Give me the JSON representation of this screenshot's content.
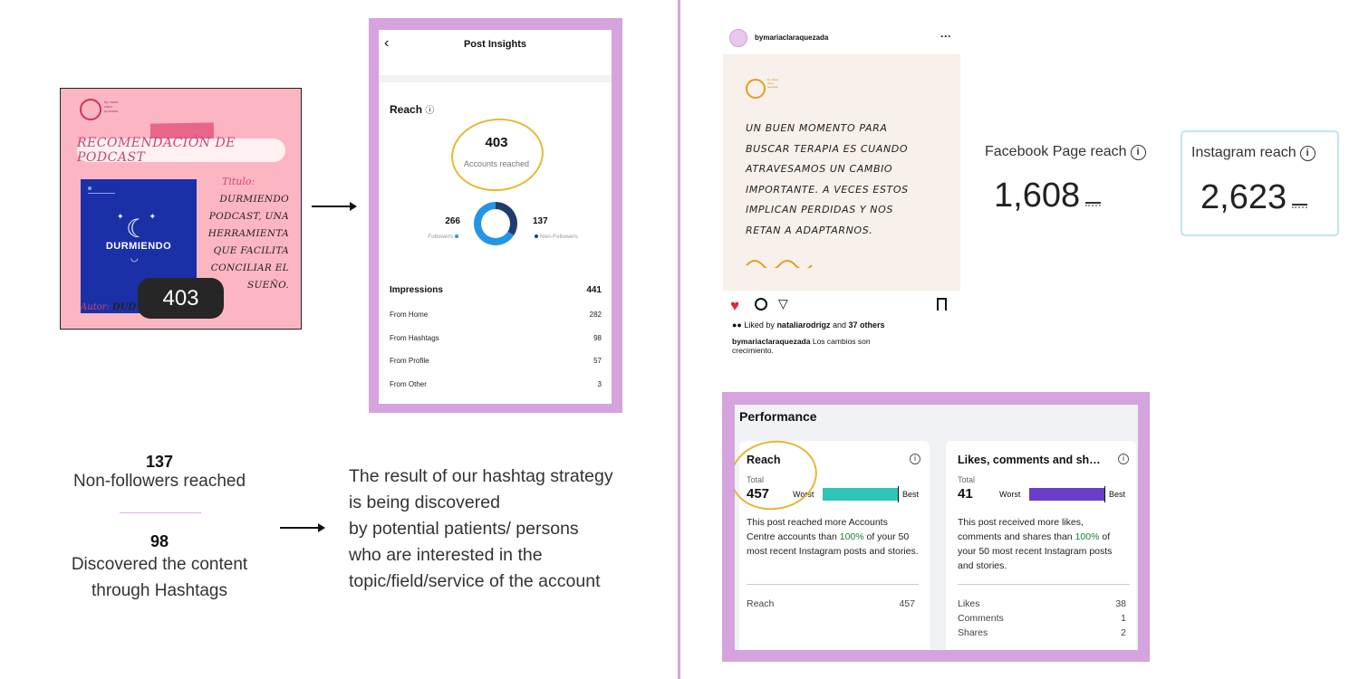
{
  "podcast_card": {
    "logo_text": "by maria clara quezada",
    "banner": "RECOMENDACIÓN DE PODCAST",
    "cover_title": "DURMIENDO",
    "title_label": "Titulo:",
    "description": "DURMIENDO PODCAST, UNA HERRAMIENTA QUE FACILITA CONCILIAR EL SUEÑO.",
    "author_label": "Autor:",
    "author_value": "DUD",
    "reach_bubble": "403"
  },
  "post_insights": {
    "title": "Post Insights",
    "reach_label": "Reach",
    "accounts_reached_value": "403",
    "accounts_reached_label": "Accounts reached",
    "followers_value": "266",
    "followers_label": "Followers",
    "non_followers_value": "137",
    "non_followers_label": "Non-Followers",
    "followers_share": 0.66,
    "impressions_label": "Impressions",
    "impressions_value": "441",
    "rows": [
      {
        "label": "From Home",
        "value": "282"
      },
      {
        "label": "From Hashtags",
        "value": "98"
      },
      {
        "label": "From Profile",
        "value": "57"
      },
      {
        "label": "From Other",
        "value": "3"
      }
    ]
  },
  "summary": {
    "stat1_value": "137",
    "stat1_label": "Non-followers reached",
    "stat2_value": "98",
    "stat2_label": "Discovered the content through Hashtags",
    "strategy_text": "The result of our hashtag strategy\nis being discovered\n by potential patients/ persons\nwho are interested in the\ntopic/field/service of the account"
  },
  "instagram_post": {
    "username": "bymariaclaraquezada",
    "more_icon": "···",
    "logo_text": "by maria clara quezada",
    "quote_lines": [
      "UN BUEN MOMENTO PARA",
      "BUSCAR TERAPIA ES CUANDO",
      "ATRAVESAMOS UN CAMBIO",
      "IMPORTANTE. A VECES ESTOS",
      "IMPLICAN PERDIDAS Y NOS",
      "RETAN A ADAPTARNOS."
    ],
    "liked_prefix": "Liked by",
    "liked_user": "nataliarodrigz",
    "liked_suffix": "and",
    "liked_others": "37 others",
    "caption_user": "bymariaclaraquezada",
    "caption_text": "Los cambios son crecimiento."
  },
  "reach_cards": {
    "facebook_label": "Facebook Page reach",
    "facebook_value": "1,608",
    "instagram_label": "Instagram reach",
    "instagram_value": "2,623"
  },
  "performance": {
    "title": "Performance",
    "reach_card": {
      "title": "Reach",
      "total_label": "Total",
      "total_value": "457",
      "worst_label": "Worst",
      "best_label": "Best",
      "bar_fraction": 1.0,
      "bar_color": "#2ec4b6",
      "desc_before": "This post reached more Accounts Centre accounts than ",
      "desc_pct": "100%",
      "desc_after": " of your 50 most recent Instagram posts and stories.",
      "rows": [
        {
          "label": "Reach",
          "value": "457"
        }
      ]
    },
    "likes_card": {
      "title": "Likes, comments and sh…",
      "total_label": "Total",
      "total_value": "41",
      "worst_label": "Worst",
      "best_label": "Best",
      "bar_fraction": 1.0,
      "bar_color": "#6b3ec9",
      "desc_before": "This post received more likes, comments and shares than ",
      "desc_pct": "100%",
      "desc_after": " of your 50 most recent Instagram posts and stories.",
      "rows": [
        {
          "label": "Likes",
          "value": "38"
        },
        {
          "label": "Comments",
          "value": "1"
        },
        {
          "label": "Shares",
          "value": "2"
        }
      ]
    }
  },
  "colors": {
    "accent_purple": "#d5a3dd",
    "highlight_yellow": "#e8b732",
    "podcast_pink": "#fbb6c1",
    "cover_blue": "#1b2fa6"
  }
}
